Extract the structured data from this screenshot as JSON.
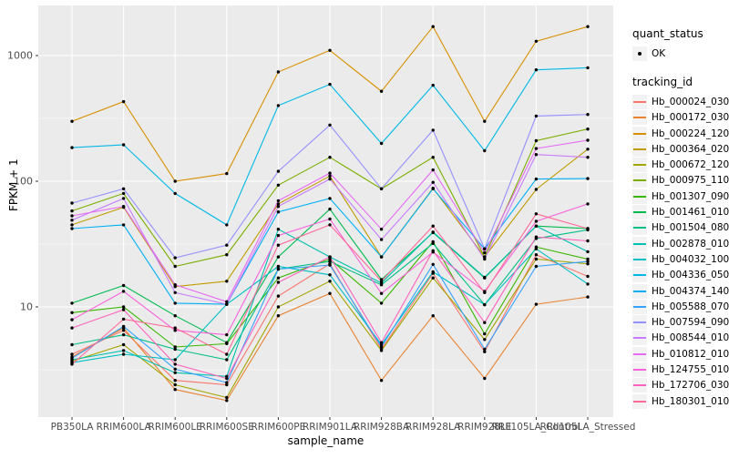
{
  "chart_data": {
    "type": "line",
    "title": "",
    "xlabel": "sample_name",
    "ylabel": "FPKM + 1",
    "y_scale": "log10",
    "y_ticks": [
      10,
      100,
      1000
    ],
    "ylim": [
      1.3,
      2500
    ],
    "grid": true,
    "panel_bg": "#EBEBEB",
    "grid_color": "#FFFFFF",
    "tick_label_color": "#4D4D4D",
    "point_color": "#000000",
    "legend_position": "right",
    "legend_quant": {
      "title": "quant_status",
      "items": [
        {
          "label": "OK",
          "marker": "point"
        }
      ]
    },
    "legend_series_title": "tracking_id",
    "categories": [
      "PB350LA",
      "RRIM600LA",
      "RRIM600LE",
      "RRIM600SE",
      "RRIM600PE",
      "RRIM901LA",
      "RRIM928BA",
      "RRIM928LA",
      "RRIM928LE",
      "RRII105LA_Control",
      "RRII105LA_Stressed"
    ],
    "series": [
      {
        "name": "Hb_000024_030",
        "color": "#F8766D",
        "values": [
          4.2,
          6.5,
          2.6,
          2.4,
          12.2,
          22,
          4.6,
          18.5,
          4.4,
          26,
          17.5
        ]
      },
      {
        "name": "Hb_000172_030",
        "color": "#EA8331",
        "values": [
          4.0,
          6.8,
          2.2,
          1.8,
          8.5,
          12.8,
          2.6,
          8.5,
          2.7,
          10.5,
          12
        ]
      },
      {
        "name": "Hb_000224_120",
        "color": "#D89000",
        "values": [
          300,
          430,
          100,
          115,
          740,
          1100,
          520,
          1700,
          300,
          1300,
          1700
        ]
      },
      {
        "name": "Hb_000364_020",
        "color": "#C09B00",
        "values": [
          45,
          62,
          14.5,
          16,
          66,
          110,
          25,
          88,
          25,
          86,
          180
        ]
      },
      {
        "name": "Hb_000672_120",
        "color": "#A3A500",
        "values": [
          3.7,
          5.0,
          2.4,
          1.9,
          10,
          16,
          4.5,
          17,
          5.5,
          24,
          22
        ]
      },
      {
        "name": "Hb_000975_110",
        "color": "#7CAE00",
        "values": [
          58,
          80,
          21,
          26,
          93,
          155,
          87,
          155,
          25,
          210,
          260
        ]
      },
      {
        "name": "Hb_001307_090",
        "color": "#39B600",
        "values": [
          9.0,
          10,
          4.8,
          5.1,
          17,
          24,
          10.7,
          33,
          6.1,
          30,
          24
        ]
      },
      {
        "name": "Hb_001461_010",
        "color": "#00BB4E",
        "values": [
          10.7,
          14.8,
          8.5,
          5.2,
          25,
          60,
          16.5,
          39,
          17,
          44,
          42
        ]
      },
      {
        "name": "Hb_001504_080",
        "color": "#00C087",
        "values": [
          5.0,
          6.0,
          4.6,
          3.8,
          20,
          23,
          15,
          32,
          10.4,
          35,
          41
        ]
      },
      {
        "name": "Hb_002878_010",
        "color": "#00C0AF",
        "values": [
          3.8,
          4.5,
          3.0,
          2.8,
          41.5,
          25,
          15.5,
          39.4,
          17.2,
          44,
          27.5
        ]
      },
      {
        "name": "Hb_004032_100",
        "color": "#00BFC4",
        "values": [
          3.6,
          4.2,
          3.8,
          10.5,
          21,
          18,
          5.0,
          19,
          10.4,
          29,
          15.2
        ]
      },
      {
        "name": "Hb_004336_050",
        "color": "#00B8E7",
        "values": [
          185,
          195,
          80,
          45,
          400,
          590,
          200,
          580,
          175,
          770,
          800
        ]
      },
      {
        "name": "Hb_004374_140",
        "color": "#00B0F6",
        "values": [
          42,
          45,
          10.7,
          10.5,
          57,
          73,
          25,
          87,
          29,
          104,
          105
        ]
      },
      {
        "name": "Hb_005588_070",
        "color": "#35A2FF",
        "values": [
          3.9,
          7.0,
          3.2,
          2.5,
          20,
          21.5,
          4.8,
          21.8,
          4.6,
          21,
          23
        ]
      },
      {
        "name": "Hb_007594_090",
        "color": "#9590FF",
        "values": [
          67,
          87,
          24.6,
          31,
          120,
          280,
          87,
          255,
          29,
          330,
          340
        ]
      },
      {
        "name": "Hb_008544_010",
        "color": "#C77CFF",
        "values": [
          49,
          73,
          13,
          10.5,
          63,
          104,
          34.4,
          98,
          24,
          163,
          155
        ]
      },
      {
        "name": "Hb_010812_010",
        "color": "#E76BF3",
        "values": [
          53,
          63,
          15,
          11,
          70,
          116,
          41.5,
          123,
          27,
          182,
          212
        ]
      },
      {
        "name": "Hb_124755_010",
        "color": "#FA62DB",
        "values": [
          7.9,
          13.3,
          6.5,
          6.0,
          37,
          50,
          12.8,
          27.3,
          13.3,
          48,
          66
        ]
      },
      {
        "name": "Hb_172706_030",
        "color": "#FF62BC",
        "values": [
          6.8,
          9.5,
          3.5,
          2.7,
          15.7,
          25,
          5.2,
          28,
          7.5,
          36,
          33.5
        ]
      },
      {
        "name": "Hb_180301_010",
        "color": "#FF6A98",
        "values": [
          3.5,
          8.0,
          6.8,
          4.2,
          31,
          45,
          16,
          44,
          13,
          55,
          42
        ]
      }
    ]
  }
}
